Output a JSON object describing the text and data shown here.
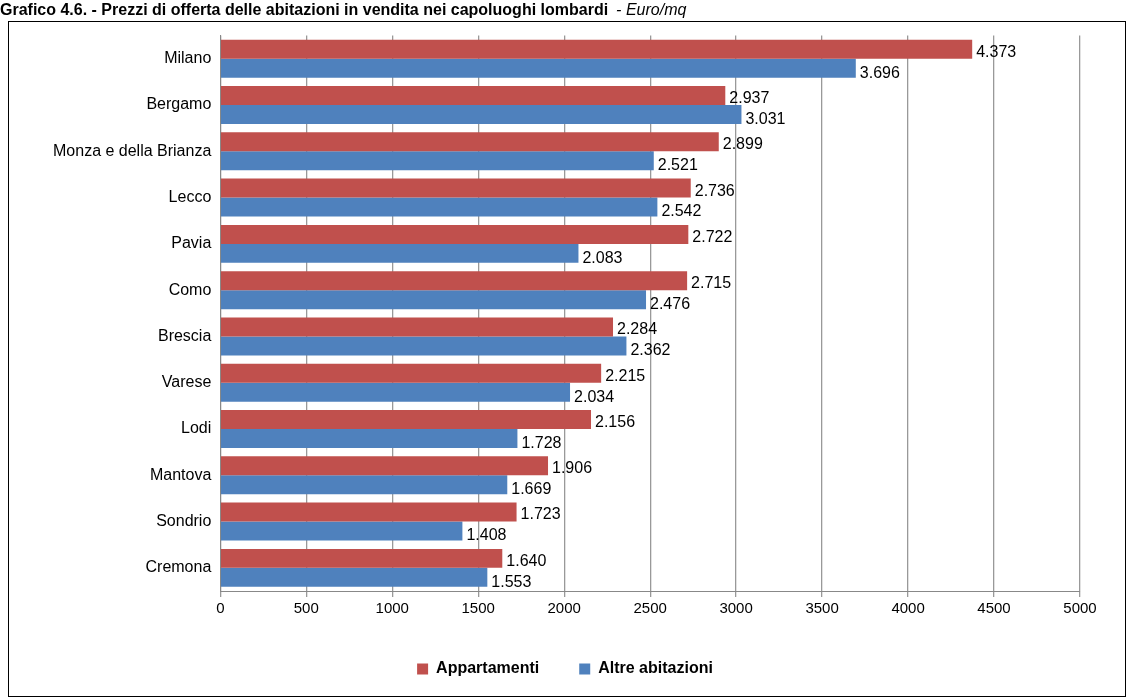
{
  "chart_data": {
    "type": "bar",
    "orientation": "horizontal",
    "title": "Grafico 4.6. - Prezzi di offerta delle abitazioni in vendita nei capoluoghi lombardi",
    "subtitle": "- Euro/mq",
    "categories": [
      "Milano",
      "Bergamo",
      "Monza e della Brianza",
      "Lecco",
      "Pavia",
      "Como",
      "Brescia",
      "Varese",
      "Lodi",
      "Mantova",
      "Sondrio",
      "Cremona"
    ],
    "series": [
      {
        "name": "Appartamenti",
        "color": "#c0504d",
        "values": [
          4373,
          2937,
          2899,
          2736,
          2722,
          2715,
          2284,
          2215,
          2156,
          1906,
          1723,
          1640
        ],
        "value_labels": [
          "4.373",
          "2.937",
          "2.899",
          "2.736",
          "2.722",
          "2.715",
          "2.284",
          "2.215",
          "2.156",
          "1.906",
          "1.723",
          "1.640"
        ]
      },
      {
        "name": "Altre abitazioni",
        "color": "#4f81bd",
        "values": [
          3696,
          3031,
          2521,
          2542,
          2083,
          2476,
          2362,
          2034,
          1728,
          1669,
          1408,
          1553
        ],
        "value_labels": [
          "3.696",
          "3.031",
          "2.521",
          "2.542",
          "2.083",
          "2.476",
          "2.362",
          "2.034",
          "1.728",
          "1.669",
          "1.408",
          "1.553"
        ]
      }
    ],
    "xlim": [
      0,
      5000
    ],
    "xticks": [
      0,
      500,
      1000,
      1500,
      2000,
      2500,
      3000,
      3500,
      4000,
      4500,
      5000
    ],
    "grid": "x",
    "legend": "bottom"
  }
}
